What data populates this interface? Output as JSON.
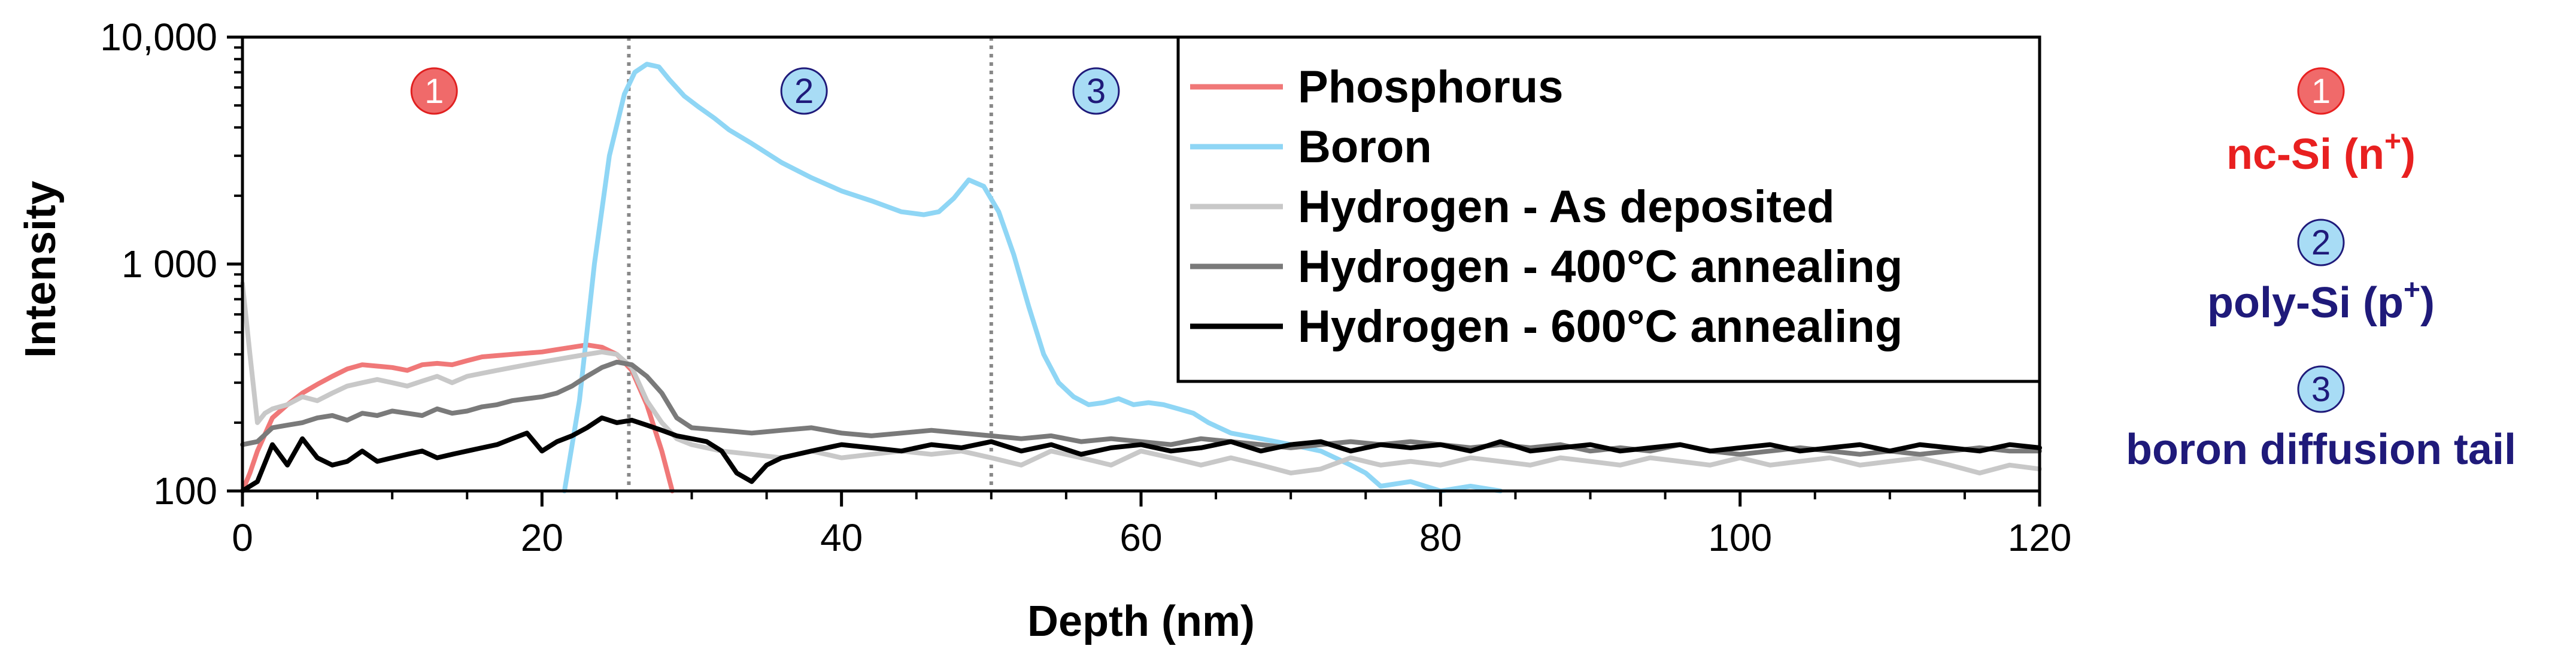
{
  "chart_data": {
    "type": "line",
    "title": "",
    "xlabel": "Depth (nm)",
    "ylabel": "Intensity",
    "xlim": [
      0,
      120
    ],
    "ylim": [
      100,
      10000
    ],
    "yscale": "log",
    "xticks": [
      0,
      20,
      40,
      60,
      80,
      100,
      120
    ],
    "xtick_labels": [
      "0",
      "20",
      "40",
      "60",
      "80",
      "100",
      "120"
    ],
    "yticks": [
      100,
      1000,
      10000
    ],
    "ytick_labels": [
      "100",
      "1 000",
      "10,000"
    ],
    "grid": false,
    "legend_position": "top-right",
    "vlines": [
      {
        "x": 25.8,
        "style": "dotted",
        "color": "#888888"
      },
      {
        "x": 50,
        "style": "dotted",
        "color": "#888888"
      }
    ],
    "regions": [
      {
        "num": "1",
        "x": 12.8,
        "fill": "#f06a6a",
        "text_color": "#ffffff",
        "stroke": "#e02020"
      },
      {
        "num": "2",
        "x": 37.5,
        "fill": "#a8dcf5",
        "text_color": "#1f1a7a",
        "stroke": "#1f1a7a"
      },
      {
        "num": "3",
        "x": 57,
        "fill": "#a8dcf5",
        "text_color": "#1f1a7a",
        "stroke": "#1f1a7a"
      }
    ],
    "series": [
      {
        "name": "Phosphorus",
        "color": "#f07878",
        "x": [
          0,
          0.5,
          1,
          2,
          3,
          4,
          5,
          6,
          7,
          8,
          9,
          10,
          11,
          12,
          13,
          14,
          15,
          16,
          17,
          18,
          19,
          20,
          21,
          22,
          23,
          24,
          25,
          26,
          27,
          28,
          28.7
        ],
        "y": [
          100,
          120,
          150,
          210,
          240,
          270,
          295,
          320,
          345,
          360,
          355,
          350,
          340,
          360,
          365,
          360,
          375,
          390,
          395,
          400,
          405,
          410,
          420,
          430,
          440,
          430,
          400,
          340,
          240,
          150,
          100
        ]
      },
      {
        "name": "Boron",
        "color": "#8fd6f5",
        "x": [
          21.5,
          22.5,
          23.5,
          24.5,
          25.5,
          26.2,
          27,
          27.8,
          28.5,
          29.5,
          30.5,
          31.5,
          32.5,
          34,
          36,
          38,
          40,
          42,
          44,
          45.5,
          46.5,
          47.5,
          48.5,
          49.5,
          50.5,
          51.5,
          52.5,
          53.5,
          54.5,
          55.5,
          56.5,
          57.5,
          58.5,
          59.5,
          60.5,
          61.5,
          62.5,
          63.5,
          64.5,
          66,
          68,
          70,
          72,
          74,
          75,
          76,
          78,
          80,
          82,
          84
        ],
        "y": [
          100,
          250,
          1000,
          3000,
          5600,
          7000,
          7600,
          7400,
          6500,
          5500,
          4900,
          4400,
          3900,
          3400,
          2800,
          2400,
          2100,
          1900,
          1700,
          1650,
          1700,
          1950,
          2350,
          2200,
          1700,
          1100,
          650,
          400,
          300,
          260,
          240,
          245,
          255,
          240,
          245,
          240,
          230,
          220,
          200,
          180,
          170,
          160,
          150,
          130,
          120,
          105,
          110,
          100,
          105,
          100
        ]
      },
      {
        "name": "Hydrogen - As deposited",
        "color": "#c8c8c8",
        "x": [
          0,
          0.5,
          1,
          1.5,
          2,
          3,
          4,
          5,
          6,
          7,
          8,
          9,
          10,
          11,
          12,
          13,
          14,
          15,
          16,
          17,
          18,
          19,
          20,
          21,
          22,
          23,
          24,
          25,
          26,
          27,
          28,
          29,
          30,
          32,
          34,
          36,
          38,
          40,
          42,
          44,
          46,
          48,
          50,
          52,
          54,
          56,
          58,
          60,
          62,
          64,
          66,
          68,
          70,
          72,
          74,
          76,
          78,
          80,
          82,
          84,
          86,
          88,
          90,
          92,
          94,
          96,
          98,
          100,
          102,
          104,
          106,
          108,
          110,
          112,
          114,
          116,
          118,
          120
        ],
        "y": [
          820,
          400,
          200,
          220,
          230,
          240,
          260,
          250,
          270,
          290,
          300,
          310,
          300,
          290,
          305,
          320,
          300,
          320,
          330,
          340,
          350,
          360,
          370,
          380,
          390,
          400,
          410,
          400,
          350,
          250,
          200,
          170,
          160,
          150,
          145,
          140,
          150,
          140,
          145,
          150,
          145,
          150,
          140,
          130,
          150,
          140,
          130,
          150,
          140,
          130,
          140,
          130,
          120,
          125,
          140,
          130,
          135,
          130,
          140,
          135,
          130,
          140,
          135,
          130,
          140,
          135,
          130,
          140,
          130,
          135,
          140,
          130,
          135,
          140,
          130,
          120,
          130,
          125
        ]
      },
      {
        "name": "Hydrogen - 400°C annealing",
        "color": "#7a7a7a",
        "x": [
          0,
          1,
          2,
          3,
          4,
          5,
          6,
          7,
          8,
          9,
          10,
          11,
          12,
          13,
          14,
          15,
          16,
          17,
          18,
          19,
          20,
          21,
          22,
          23,
          24,
          25,
          26,
          27,
          28,
          29,
          30,
          32,
          34,
          36,
          38,
          40,
          42,
          44,
          46,
          48,
          50,
          52,
          54,
          56,
          58,
          60,
          62,
          64,
          66,
          68,
          70,
          72,
          74,
          76,
          78,
          80,
          82,
          84,
          86,
          88,
          90,
          92,
          94,
          96,
          98,
          100,
          102,
          104,
          106,
          108,
          110,
          112,
          114,
          116,
          118,
          120
        ],
        "y": [
          160,
          165,
          190,
          195,
          200,
          210,
          215,
          205,
          220,
          215,
          225,
          220,
          215,
          230,
          220,
          225,
          235,
          240,
          250,
          255,
          260,
          270,
          290,
          320,
          350,
          370,
          360,
          320,
          270,
          210,
          190,
          185,
          180,
          185,
          190,
          180,
          175,
          180,
          185,
          180,
          175,
          170,
          175,
          165,
          170,
          165,
          160,
          170,
          165,
          160,
          155,
          160,
          165,
          160,
          165,
          160,
          155,
          160,
          155,
          160,
          150,
          155,
          150,
          160,
          150,
          145,
          150,
          155,
          150,
          145,
          150,
          145,
          150,
          155,
          150,
          150
        ]
      },
      {
        "name": "Hydrogen - 600°C annealing",
        "color": "#000000",
        "x": [
          0,
          0.5,
          1,
          2,
          3,
          4,
          5,
          6,
          7,
          8,
          9,
          10,
          11,
          12,
          13,
          14,
          15,
          16,
          17,
          18,
          19,
          20,
          21,
          22,
          23,
          24,
          25,
          26,
          27,
          28,
          29,
          30,
          31,
          32,
          33,
          34,
          35,
          36,
          38,
          40,
          42,
          44,
          46,
          48,
          50,
          52,
          54,
          56,
          58,
          60,
          62,
          64,
          66,
          68,
          70,
          72,
          74,
          76,
          78,
          80,
          82,
          84,
          86,
          88,
          90,
          92,
          94,
          96,
          98,
          100,
          102,
          104,
          106,
          108,
          110,
          112,
          114,
          116,
          118,
          120
        ],
        "y": [
          100,
          105,
          110,
          160,
          130,
          170,
          140,
          130,
          135,
          150,
          135,
          140,
          145,
          150,
          140,
          145,
          150,
          155,
          160,
          170,
          180,
          150,
          165,
          175,
          190,
          210,
          200,
          205,
          195,
          185,
          175,
          170,
          165,
          150,
          120,
          110,
          130,
          140,
          150,
          160,
          155,
          150,
          160,
          155,
          165,
          150,
          160,
          145,
          155,
          160,
          150,
          155,
          165,
          150,
          160,
          165,
          150,
          160,
          155,
          160,
          150,
          165,
          150,
          155,
          160,
          150,
          155,
          160,
          150,
          155,
          160,
          150,
          155,
          160,
          150,
          160,
          155,
          150,
          160,
          155
        ]
      }
    ]
  },
  "side_labels": [
    {
      "num": "1",
      "text": "nc-Si (n",
      "sup": "+",
      "close": ")",
      "color": "#e82020",
      "fill": "#f06a6a",
      "num_color": "#ffffff"
    },
    {
      "num": "2",
      "text": "poly-Si (p",
      "sup": "+",
      "close": ")",
      "color": "#1f1a7a",
      "fill": "#a8dcf5",
      "num_color": "#1f1a7a"
    },
    {
      "num": "3",
      "text": "boron diffusion tail",
      "sup": "",
      "close": "",
      "color": "#1f1a7a",
      "fill": "#a8dcf5",
      "num_color": "#1f1a7a"
    }
  ]
}
